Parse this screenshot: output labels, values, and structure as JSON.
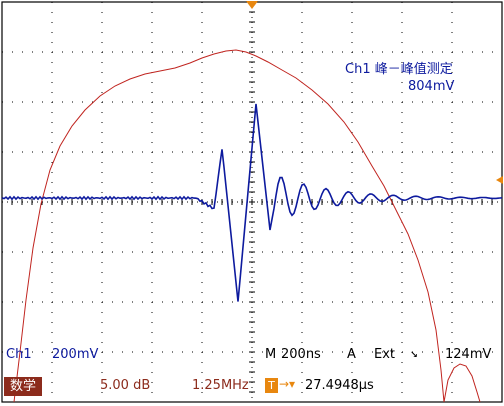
{
  "measurement": {
    "title": "Ch1 峰－峰值测定",
    "value": "804mV"
  },
  "channel": {
    "name": "Ch1",
    "scale": "200mV",
    "color": "#0d1a9e"
  },
  "timebase": {
    "mode": "M",
    "scale": "200ns"
  },
  "trigger": {
    "mode": "A",
    "source": "Ext",
    "slope_symbol": "↘",
    "level": "124mV",
    "position_time": "27.4948µs",
    "position_badge": "T",
    "position_arrow": "→▾",
    "marker_color": "#e8870f"
  },
  "math": {
    "badge": "数学",
    "gain": "5.00 dB",
    "frequency": "1.25MHz",
    "color": "#c0241f"
  }
}
